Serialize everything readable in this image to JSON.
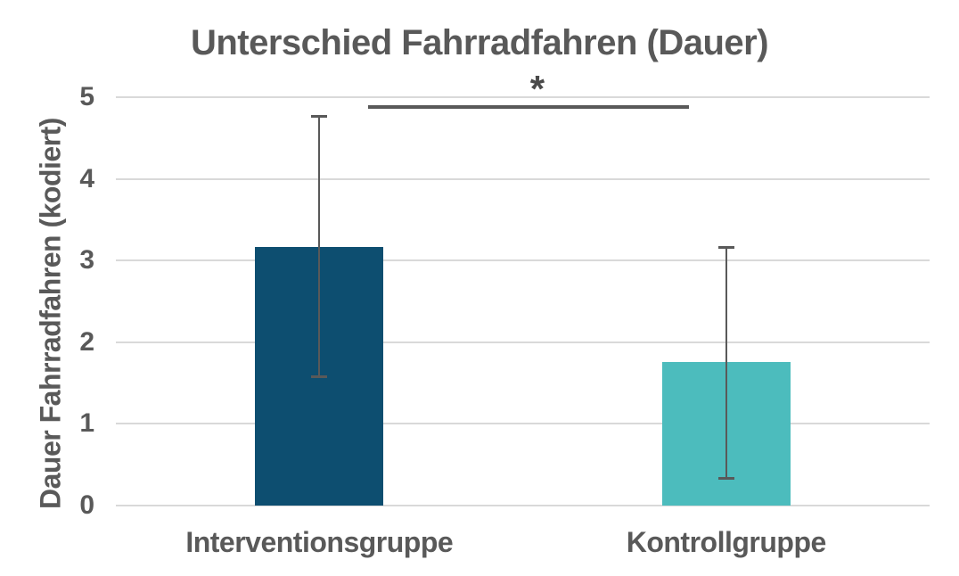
{
  "chart_data": {
    "type": "bar",
    "title": "Unterschied Fahrradfahren (Dauer)",
    "ylabel": "Dauer Fahrradfahren (kodiert)",
    "xlabel": "",
    "categories": [
      "Interventionsgruppe",
      "Kontrollgruppe"
    ],
    "values": [
      3.17,
      1.76
    ],
    "error_bars": {
      "upper": [
        4.77,
        3.17
      ],
      "lower": [
        1.57,
        0.33
      ]
    },
    "bar_colors": [
      "#0d4e70",
      "#4cbcbd"
    ],
    "yticks": [
      0,
      1,
      2,
      3,
      4,
      5
    ],
    "ylim": [
      0,
      5
    ],
    "grid": "horizontal",
    "legend": "none",
    "significance": {
      "label": "*",
      "between": [
        "Interventionsgruppe",
        "Kontrollgruppe"
      ],
      "line_y": 4.88
    }
  },
  "colors": {
    "text": "#595959",
    "grid": "#d9d9d9",
    "error_bar": "#595959",
    "significance_line": "#595959",
    "bar_intervention": "#0d4e70",
    "bar_control": "#4cbcbd",
    "background": "#ffffff"
  }
}
